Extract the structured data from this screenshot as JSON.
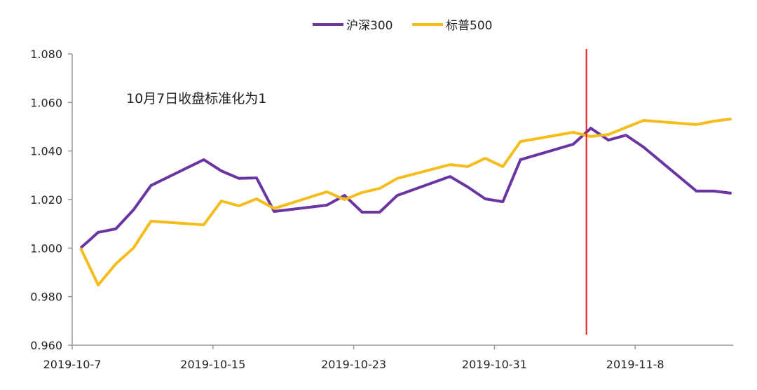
{
  "chart_data": {
    "type": "line",
    "title": "",
    "xlabel": "",
    "ylabel": "",
    "ylim": [
      0.96,
      1.08
    ],
    "yticks": [
      "0.960",
      "0.980",
      "1.000",
      "1.020",
      "1.040",
      "1.060",
      "1.080"
    ],
    "ytick_values": [
      0.96,
      0.98,
      1.0,
      1.02,
      1.04,
      1.06,
      1.08
    ],
    "x_unit": "days since 2019-10-7",
    "xticks": [
      {
        "day": 0,
        "label": "2019-10-7"
      },
      {
        "day": 8,
        "label": "2019-10-15"
      },
      {
        "day": 16,
        "label": "2019-10-23"
      },
      {
        "day": 24,
        "label": "2019-10-31"
      },
      {
        "day": 32,
        "label": "2019-11-8"
      }
    ],
    "x": [
      0,
      1,
      2,
      3,
      4,
      7,
      8,
      9,
      10,
      11,
      14,
      15,
      16,
      17,
      18,
      21,
      22,
      23,
      24,
      25,
      28,
      29,
      30,
      31,
      32,
      35,
      36,
      37
    ],
    "series": [
      {
        "name": "沪深300",
        "color": "#6a35a0",
        "values": [
          1.0,
          1.0065,
          1.0079,
          1.0157,
          1.0258,
          1.0364,
          1.0318,
          1.0287,
          1.0289,
          1.0151,
          1.0177,
          1.0217,
          1.0148,
          1.0148,
          1.0217,
          1.0295,
          1.0252,
          1.0203,
          1.0191,
          1.0364,
          1.0428,
          1.0494,
          1.0445,
          1.0465,
          1.0416,
          1.0235,
          1.0235,
          1.0226
        ]
      },
      {
        "name": "标普500",
        "color": "#f5bd1c",
        "values": [
          1.0,
          0.9848,
          0.9935,
          1.0,
          1.0111,
          1.0096,
          1.0194,
          1.0174,
          1.0203,
          1.0163,
          1.0232,
          1.02,
          1.0229,
          1.0246,
          1.0287,
          1.0344,
          1.0336,
          1.037,
          1.0336,
          1.0439,
          1.0477,
          1.046,
          1.0468,
          1.0497,
          1.0526,
          1.0509,
          1.0523,
          1.0532
        ]
      }
    ],
    "vertical_marker": {
      "day": 28.75,
      "color": "#e02020"
    },
    "annotation": "10月7日收盘标准化为1",
    "legend": "top-center",
    "grid": false
  }
}
